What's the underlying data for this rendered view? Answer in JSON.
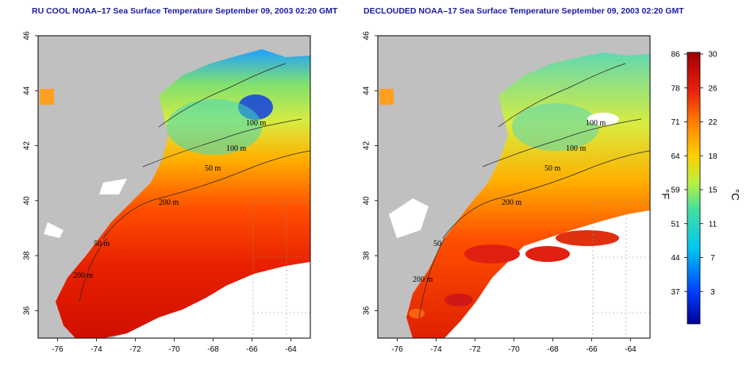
{
  "panels": {
    "left": {
      "title": "RU COOL NOAA–17 Sea Surface Temperature September 09, 2003 02:20 GMT"
    },
    "right": {
      "title": "DECLOUDED NOAA–17 Sea Surface Temperature September 09, 2003 02:20 GMT"
    }
  },
  "axes": {
    "lon_ticks": [
      "-76",
      "-74",
      "-72",
      "-70",
      "-68",
      "-66",
      "-64"
    ],
    "lat_ticks": [
      "36",
      "38",
      "40",
      "42",
      "44",
      "46"
    ]
  },
  "isobaths": {
    "left": [
      "100 m",
      "100 m",
      "50 m",
      "200 m",
      "50 m",
      "200 m"
    ],
    "right": [
      "100 m",
      "100 m",
      "50 m",
      "200 m",
      "50",
      "200 m"
    ]
  },
  "colorbar": {
    "fahrenheit_ticks": [
      "86",
      "78",
      "71",
      "64",
      "59",
      "51",
      "44",
      "37"
    ],
    "celsius_ticks": [
      "30",
      "26",
      "22",
      "18",
      "15",
      "11",
      "7",
      "3"
    ],
    "fahrenheit_unit": "°F",
    "celsius_unit": "°C",
    "colors": [
      "#0000a0",
      "#0050ff",
      "#00c8ff",
      "#50e8a0",
      "#c8f050",
      "#ffd000",
      "#ff7000",
      "#e82000",
      "#a00000"
    ]
  }
}
